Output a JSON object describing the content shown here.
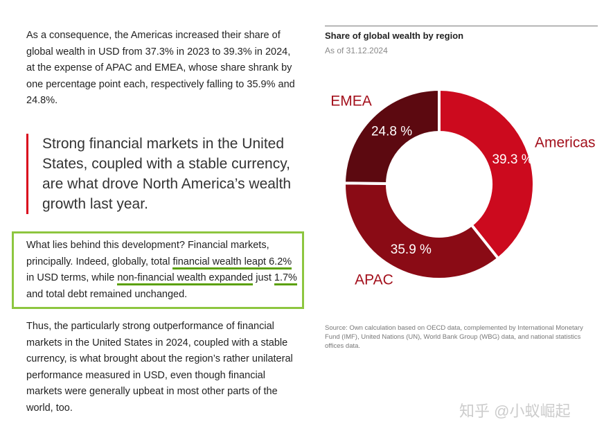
{
  "text": {
    "paragraph_1": "As a consequence, the Americas increased their share of global wealth in USD from 37.3% in 2023 to 39.3% in 2024, at the expense of APAC and EMEA, whose share shrank by one percentage point each, respectively falling to 35.9% and 24.8%.",
    "quote": "Strong financial markets in the United States, coupled with a stable currency, are what drove North America’s wealth growth last year.",
    "highlight_parts": [
      "What lies behind this development? Financial markets, principally. Indeed, globally, total ",
      "financial wealth leapt 6.2%",
      " in USD terms, while ",
      "non-financial wealth expanded",
      " just ",
      "1.7%",
      " and total debt remained unchanged."
    ],
    "paragraph_3": "Thus, the particularly strong outperformance of financial markets in the United States in 2024, coupled with a stable currency, is what brought about the region’s rather unilateral performance measured in USD, even though financial markets were generally upbeat in most other parts of the world, too."
  },
  "chart_data": {
    "type": "donut",
    "title": "Share of global wealth by region",
    "subtitle": "As of 31.12.2024",
    "categories": [
      "Americas",
      "APAC",
      "EMEA"
    ],
    "values": [
      39.3,
      35.9,
      24.8
    ],
    "value_labels": [
      "39.3 %",
      "35.9 %",
      "24.8 %"
    ],
    "colors": [
      "#cc0a1e",
      "#8a0b15",
      "#5c0910"
    ],
    "source": "Source: Own calculation based on OECD data, complemented by International Monetary Fund (IMF), United Nations (UN), World Bank Group (WBG) data, and national statistics offices data."
  },
  "watermark": "知乎 @小蚁崛起"
}
